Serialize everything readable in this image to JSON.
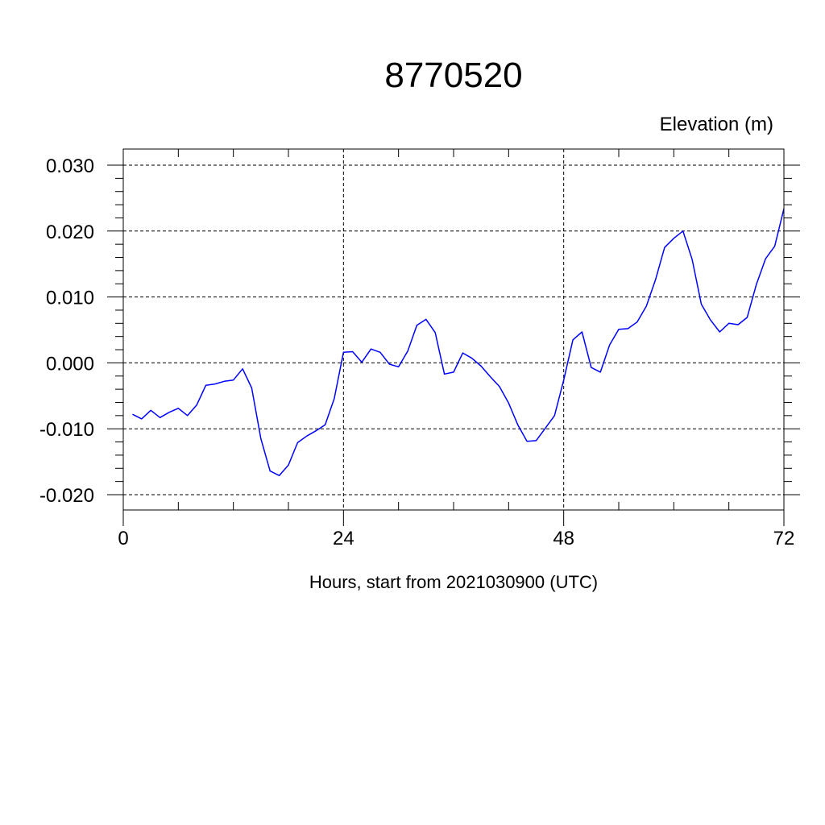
{
  "chart_data": {
    "type": "line",
    "title": "8770520",
    "ylabel": "Elevation (m)",
    "xlabel": "Hours, start from 2021030900 (UTC)",
    "xlim": [
      0,
      72
    ],
    "ylim": [
      -0.02,
      0.03
    ],
    "xticks": [
      0,
      24,
      48,
      72
    ],
    "xtick_labels": [
      "0",
      "24",
      "48",
      "72"
    ],
    "yticks": [
      -0.02,
      -0.01,
      0.0,
      0.01,
      0.02,
      0.03
    ],
    "ytick_labels": [
      "-0.020",
      "-0.010",
      "0.000",
      "0.010",
      "0.020",
      "0.030"
    ],
    "grid": true,
    "series": [
      {
        "color": "#0000ff",
        "x": [
          1,
          2,
          3,
          4,
          5,
          6,
          7,
          8,
          9,
          10,
          11,
          12,
          13,
          14,
          15,
          16,
          17,
          18,
          19,
          20,
          21,
          22,
          23,
          24,
          25,
          26,
          27,
          28,
          29,
          30,
          31,
          32,
          33,
          34,
          35,
          36,
          37,
          38,
          39,
          40,
          41,
          42,
          43,
          44,
          45,
          46,
          47,
          48,
          49,
          50,
          51,
          52,
          53,
          54,
          55,
          56,
          57,
          58,
          59,
          60,
          61,
          62,
          63,
          64,
          65,
          66,
          67,
          68,
          69,
          70,
          71,
          72
        ],
        "y": [
          -0.0078,
          -0.0085,
          -0.0072,
          -0.0083,
          -0.0075,
          -0.0069,
          -0.008,
          -0.0064,
          -0.0034,
          -0.0032,
          -0.0028,
          -0.0026,
          -0.0009,
          -0.0038,
          -0.0115,
          -0.0164,
          -0.0171,
          -0.0155,
          -0.0121,
          -0.0111,
          -0.0103,
          -0.0094,
          -0.0054,
          0.0016,
          0.0017,
          0.0001,
          0.0021,
          0.0016,
          -0.0002,
          -0.0006,
          0.0018,
          0.0057,
          0.0066,
          0.0046,
          -0.0017,
          -0.0014,
          0.0015,
          0.0007,
          -0.0005,
          -0.0021,
          -0.0036,
          -0.0061,
          -0.0094,
          -0.0119,
          -0.0118,
          -0.0099,
          -0.008,
          -0.0026,
          0.0035,
          0.0047,
          -0.0007,
          -0.0014,
          0.0027,
          0.0051,
          0.0052,
          0.0062,
          0.0086,
          0.0126,
          0.0175,
          0.0189,
          0.02,
          0.0157,
          0.0089,
          0.0065,
          0.0047,
          0.006,
          0.0058,
          0.0069,
          0.0119,
          0.0158,
          0.0177,
          0.0234
        ]
      }
    ]
  }
}
